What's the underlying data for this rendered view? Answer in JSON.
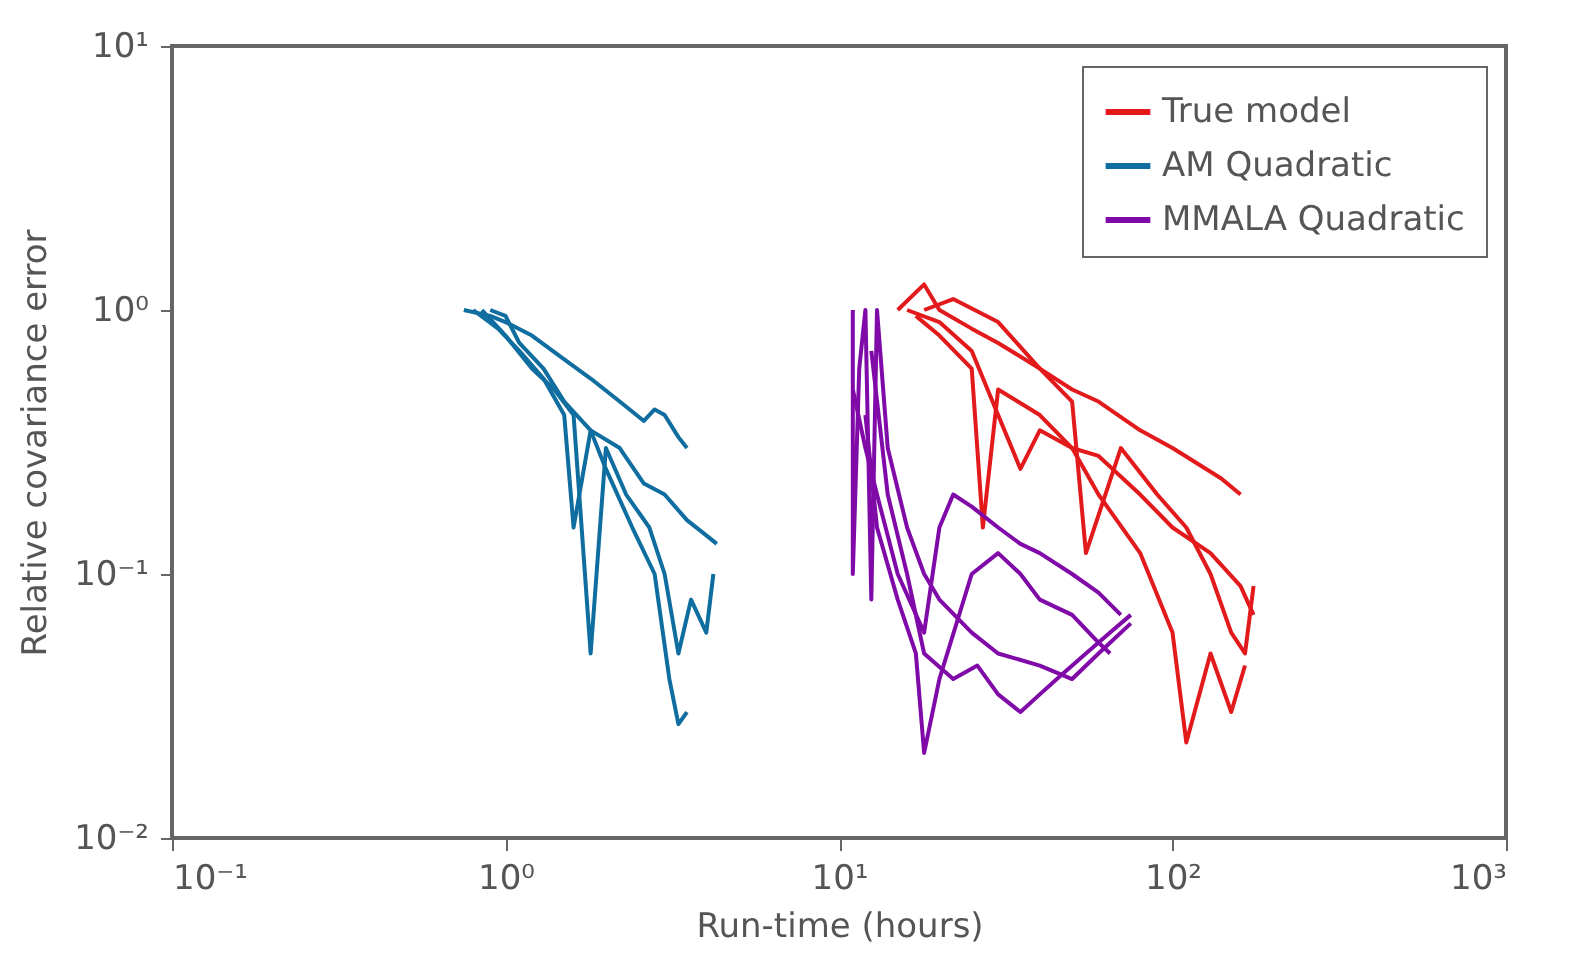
{
  "chart_data": {
    "type": "line",
    "xlabel": "Run-time (hours)",
    "ylabel": "Relative covariance error",
    "log": "xy",
    "grid": false,
    "legend": "top right",
    "xlim": [
      0.1,
      1000
    ],
    "ylim": [
      0.01,
      10
    ],
    "xticks": [
      {
        "value": 0.1,
        "label": "10⁻¹"
      },
      {
        "value": 1,
        "label": "10⁰"
      },
      {
        "value": 10,
        "label": "10¹"
      },
      {
        "value": 100,
        "label": "10²"
      },
      {
        "value": 1000,
        "label": "10³"
      }
    ],
    "yticks": [
      {
        "value": 0.01,
        "label": "10⁻²"
      },
      {
        "value": 0.1,
        "label": "10⁻¹"
      },
      {
        "value": 1,
        "label": "10⁰"
      },
      {
        "value": 10,
        "label": "10¹"
      }
    ],
    "series": [
      {
        "name": "True model",
        "color": "#e31a1c",
        "x": [
          15,
          18,
          20,
          25,
          30,
          40,
          50,
          60,
          80,
          100,
          120,
          140,
          160
        ],
        "values": [
          1,
          1.25,
          1,
          0.85,
          0.75,
          0.6,
          0.5,
          0.45,
          0.35,
          0.3,
          0.26,
          0.23,
          0.2
        ]
      },
      {
        "name": "AM Quadratic",
        "color": "#0f6e9f",
        "x": [
          0.75,
          0.9,
          1.0,
          1.2,
          1.5,
          1.8,
          2.2,
          2.6,
          2.8,
          3.0,
          3.3,
          3.5
        ],
        "values": [
          1,
          0.95,
          0.9,
          0.8,
          0.65,
          0.55,
          0.45,
          0.38,
          0.42,
          0.4,
          0.33,
          0.3
        ]
      },
      {
        "name": "MMALA Quadratic",
        "color": "#800aa8",
        "x": [
          11,
          11,
          11.5,
          12,
          12.5,
          13,
          14,
          16,
          18,
          20,
          25,
          30,
          40,
          50,
          60,
          75
        ],
        "values": [
          1,
          0.1,
          0.6,
          1,
          0.08,
          1,
          0.3,
          0.15,
          0.1,
          0.08,
          0.06,
          0.05,
          0.045,
          0.04,
          0.05,
          0.065
        ]
      },
      {
        "color": "#e31a1c",
        "x": [
          16,
          20,
          25,
          30,
          35,
          40,
          50,
          60,
          80,
          100,
          130,
          160,
          175
        ],
        "values": [
          1,
          0.9,
          0.7,
          0.4,
          0.25,
          0.35,
          0.3,
          0.28,
          0.2,
          0.15,
          0.12,
          0.09,
          0.07
        ]
      },
      {
        "color": "#e31a1c",
        "x": [
          17,
          20,
          25,
          27,
          30,
          40,
          50,
          60,
          80,
          100,
          110,
          130,
          150,
          165
        ],
        "values": [
          0.95,
          0.8,
          0.6,
          0.15,
          0.5,
          0.4,
          0.3,
          0.2,
          0.12,
          0.06,
          0.023,
          0.05,
          0.03,
          0.045
        ]
      },
      {
        "color": "#e31a1c",
        "x": [
          18,
          22,
          30,
          40,
          50,
          55,
          70,
          90,
          110,
          130,
          150,
          165,
          175
        ],
        "values": [
          1,
          1.1,
          0.9,
          0.6,
          0.45,
          0.12,
          0.3,
          0.2,
          0.15,
          0.1,
          0.06,
          0.05,
          0.09
        ]
      },
      {
        "color": "#0f6e9f",
        "x": [
          0.8,
          0.95,
          1.1,
          1.3,
          1.5,
          1.6,
          1.8,
          2.2,
          2.6,
          3.0,
          3.5,
          4.0,
          4.3
        ],
        "values": [
          1,
          0.85,
          0.7,
          0.55,
          0.4,
          0.15,
          0.35,
          0.3,
          0.22,
          0.2,
          0.16,
          0.14,
          0.13
        ]
      },
      {
        "color": "#0f6e9f",
        "x": [
          0.85,
          1.0,
          1.2,
          1.4,
          1.6,
          1.8,
          2.0,
          2.3,
          2.7,
          3.0,
          3.3,
          3.6,
          4.0,
          4.2
        ],
        "values": [
          1,
          0.8,
          0.6,
          0.5,
          0.4,
          0.05,
          0.3,
          0.2,
          0.15,
          0.1,
          0.05,
          0.08,
          0.06,
          0.1
        ]
      },
      {
        "color": "#0f6e9f",
        "x": [
          0.9,
          1.0,
          1.1,
          1.3,
          1.5,
          1.8,
          2.0,
          2.4,
          2.8,
          3.1,
          3.3,
          3.5
        ],
        "values": [
          1,
          0.95,
          0.75,
          0.6,
          0.45,
          0.35,
          0.25,
          0.15,
          0.1,
          0.04,
          0.027,
          0.03
        ]
      },
      {
        "color": "#800aa8",
        "x": [
          11,
          12,
          13,
          15,
          18,
          20,
          22,
          25,
          30,
          35,
          40,
          50,
          60,
          70
        ],
        "values": [
          0.5,
          0.3,
          0.2,
          0.1,
          0.06,
          0.15,
          0.2,
          0.18,
          0.15,
          0.13,
          0.12,
          0.1,
          0.085,
          0.07
        ]
      },
      {
        "color": "#800aa8",
        "x": [
          12,
          13,
          15,
          17,
          18,
          20,
          25,
          30,
          35,
          40,
          50,
          60,
          65
        ],
        "values": [
          0.4,
          0.15,
          0.08,
          0.05,
          0.021,
          0.04,
          0.1,
          0.12,
          0.1,
          0.08,
          0.07,
          0.055,
          0.05
        ]
      },
      {
        "color": "#800aa8",
        "x": [
          12.5,
          14,
          16,
          18,
          22,
          26,
          30,
          35,
          40,
          45,
          55,
          65,
          75
        ],
        "values": [
          0.7,
          0.2,
          0.1,
          0.05,
          0.04,
          0.045,
          0.035,
          0.03,
          0.035,
          0.04,
          0.05,
          0.06,
          0.07
        ]
      }
    ]
  }
}
